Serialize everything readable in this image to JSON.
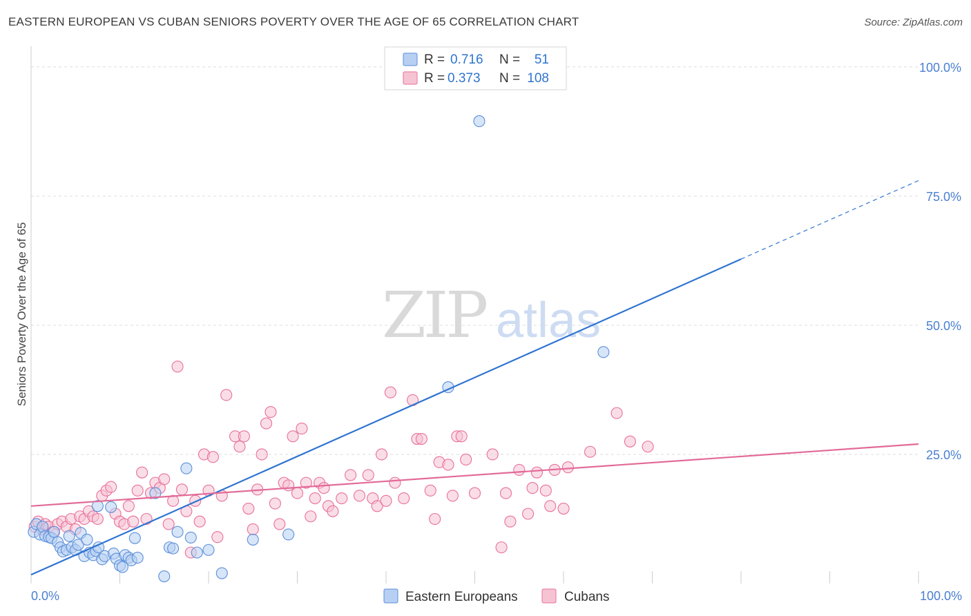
{
  "title": "EASTERN EUROPEAN VS CUBAN SENIORS POVERTY OVER THE AGE OF 65 CORRELATION CHART",
  "source": "Source: ZipAtlas.com",
  "watermark": {
    "zip": "ZIP",
    "atlas": "atlas"
  },
  "colors": {
    "blue": "#5b8fd9",
    "blue_fill": "#b7cff2",
    "blue_line": "#2f74d0",
    "pink": "#e86f9a",
    "pink_fill": "#f6c3d3",
    "pink_line": "#e26a97",
    "tick_label": "#4a7fd0",
    "grid": "#dcdcdc"
  },
  "legend_top": [
    {
      "r_label": "R =",
      "r_value": "0.716",
      "n_label": "N =",
      "n_value": "51",
      "color": "blue"
    },
    {
      "r_label": "R =",
      "r_value": "0.373",
      "n_label": "N =",
      "n_value": "108",
      "color": "pink"
    }
  ],
  "chart_data": {
    "type": "scatter",
    "title": "EASTERN EUROPEAN VS CUBAN SENIORS POVERTY OVER THE AGE OF 65 CORRELATION CHART",
    "xlabel": "",
    "ylabel": "Seniors Poverty Over the Age of 65",
    "xlim": [
      0,
      100
    ],
    "ylim": [
      0,
      104
    ],
    "x_tick_labels": [
      "0.0%",
      "100.0%"
    ],
    "y_ticks": [
      25,
      50,
      75,
      100
    ],
    "y_tick_labels": [
      "25.0%",
      "50.0%",
      "75.0%",
      "100.0%"
    ],
    "grid": true,
    "legend_position": "bottom",
    "series": [
      {
        "name": "Eastern Europeans",
        "color": "blue",
        "trend": {
          "x0": 0,
          "y0": 1.7,
          "x1": 80,
          "y1": 62.8,
          "dash_to_x": 100,
          "dash_to_y": 78
        },
        "points": [
          [
            0.3,
            10
          ],
          [
            0.6,
            11.5
          ],
          [
            1,
            9.5
          ],
          [
            1.3,
            11
          ],
          [
            1.6,
            9.2
          ],
          [
            2,
            9
          ],
          [
            2.3,
            8.8
          ],
          [
            2.6,
            10
          ],
          [
            3,
            8
          ],
          [
            3.3,
            7
          ],
          [
            3.6,
            6.2
          ],
          [
            4,
            6.5
          ],
          [
            4.3,
            9.2
          ],
          [
            4.6,
            7
          ],
          [
            5,
            6.5
          ],
          [
            5.3,
            7.5
          ],
          [
            5.6,
            9.8
          ],
          [
            6,
            5.3
          ],
          [
            6.3,
            8.5
          ],
          [
            6.6,
            6
          ],
          [
            7,
            5.5
          ],
          [
            7.3,
            6.3
          ],
          [
            7.6,
            7
          ],
          [
            8,
            4.7
          ],
          [
            8.3,
            5.3
          ],
          [
            9,
            14.8
          ],
          [
            9.3,
            5.8
          ],
          [
            9.6,
            4.8
          ],
          [
            10,
            3.5
          ],
          [
            10.3,
            3.2
          ],
          [
            10.6,
            5.5
          ],
          [
            11,
            5
          ],
          [
            11.3,
            4.5
          ],
          [
            11.7,
            8.8
          ],
          [
            14,
            17.5
          ],
          [
            15,
            1.4
          ],
          [
            15.6,
            7
          ],
          [
            16,
            6.8
          ],
          [
            16.5,
            10
          ],
          [
            17.5,
            22.3
          ],
          [
            18,
            8.9
          ],
          [
            18.7,
            6
          ],
          [
            20,
            6.5
          ],
          [
            21.5,
            2
          ],
          [
            25,
            8.5
          ],
          [
            29,
            9.5
          ],
          [
            47,
            38
          ],
          [
            50.5,
            89.5
          ],
          [
            64.5,
            44.8
          ],
          [
            7.5,
            15
          ],
          [
            12,
            5
          ]
        ]
      },
      {
        "name": "Cubans",
        "color": "pink",
        "trend": {
          "x0": 0,
          "y0": 15,
          "x1": 100,
          "y1": 27
        },
        "points": [
          [
            0.4,
            11
          ],
          [
            0.8,
            12
          ],
          [
            1.2,
            10.5
          ],
          [
            1.6,
            11.5
          ],
          [
            2,
            11
          ],
          [
            2.5,
            10
          ],
          [
            3,
            11.5
          ],
          [
            3.5,
            12
          ],
          [
            4,
            11
          ],
          [
            4.5,
            12.5
          ],
          [
            5,
            10.5
          ],
          [
            5.5,
            13
          ],
          [
            6,
            12.5
          ],
          [
            6.5,
            14
          ],
          [
            7,
            13
          ],
          [
            7.5,
            12.5
          ],
          [
            8,
            17
          ],
          [
            8.5,
            18
          ],
          [
            9,
            18.7
          ],
          [
            9.5,
            13.5
          ],
          [
            10,
            12
          ],
          [
            10.5,
            11.5
          ],
          [
            11,
            15
          ],
          [
            11.5,
            12
          ],
          [
            12,
            18
          ],
          [
            12.5,
            21.5
          ],
          [
            13,
            12.5
          ],
          [
            13.5,
            17.5
          ],
          [
            14,
            19.5
          ],
          [
            14.5,
            18.5
          ],
          [
            15,
            20.2
          ],
          [
            15.5,
            11.5
          ],
          [
            16,
            16
          ],
          [
            16.5,
            42
          ],
          [
            17,
            18.2
          ],
          [
            17.5,
            14
          ],
          [
            18,
            6
          ],
          [
            18.5,
            16
          ],
          [
            19,
            12
          ],
          [
            19.5,
            25
          ],
          [
            20,
            18
          ],
          [
            20.5,
            24.5
          ],
          [
            21,
            9
          ],
          [
            21.5,
            17
          ],
          [
            22,
            36.5
          ],
          [
            23,
            28.5
          ],
          [
            23.5,
            26.5
          ],
          [
            24,
            28.5
          ],
          [
            24.5,
            14.5
          ],
          [
            25,
            10.5
          ],
          [
            25.5,
            18.2
          ],
          [
            26,
            25
          ],
          [
            26.5,
            31
          ],
          [
            27,
            33.2
          ],
          [
            27.5,
            15.5
          ],
          [
            28,
            11.5
          ],
          [
            28.5,
            19.5
          ],
          [
            29,
            19
          ],
          [
            29.5,
            28.5
          ],
          [
            30,
            17.5
          ],
          [
            30.5,
            30
          ],
          [
            31,
            19.5
          ],
          [
            31.5,
            13
          ],
          [
            32,
            16.5
          ],
          [
            32.5,
            19.5
          ],
          [
            33,
            18.5
          ],
          [
            33.5,
            15
          ],
          [
            34,
            14
          ],
          [
            35,
            16.5
          ],
          [
            36,
            21
          ],
          [
            37,
            17
          ],
          [
            38,
            21
          ],
          [
            38.5,
            16.5
          ],
          [
            39,
            15
          ],
          [
            39.5,
            25
          ],
          [
            40,
            16
          ],
          [
            40.5,
            37
          ],
          [
            41,
            19.5
          ],
          [
            42,
            16.5
          ],
          [
            43,
            35.5
          ],
          [
            43.5,
            28
          ],
          [
            44,
            28
          ],
          [
            45,
            18
          ],
          [
            45.5,
            12.5
          ],
          [
            46,
            23.5
          ],
          [
            47,
            23
          ],
          [
            48,
            28.5
          ],
          [
            48.5,
            28.5
          ],
          [
            49,
            24
          ],
          [
            50,
            17.5
          ],
          [
            52,
            25
          ],
          [
            53,
            7
          ],
          [
            53.5,
            17.5
          ],
          [
            54,
            12
          ],
          [
            55,
            22
          ],
          [
            56,
            13.5
          ],
          [
            56.5,
            18.5
          ],
          [
            57,
            21.5
          ],
          [
            58,
            18
          ],
          [
            58.5,
            15
          ],
          [
            59,
            22
          ],
          [
            60,
            14.5
          ],
          [
            60.5,
            22.5
          ],
          [
            63,
            25.5
          ],
          [
            66,
            33
          ],
          [
            67.5,
            27.5
          ],
          [
            69.5,
            26.5
          ],
          [
            47.5,
            17
          ]
        ]
      }
    ]
  }
}
